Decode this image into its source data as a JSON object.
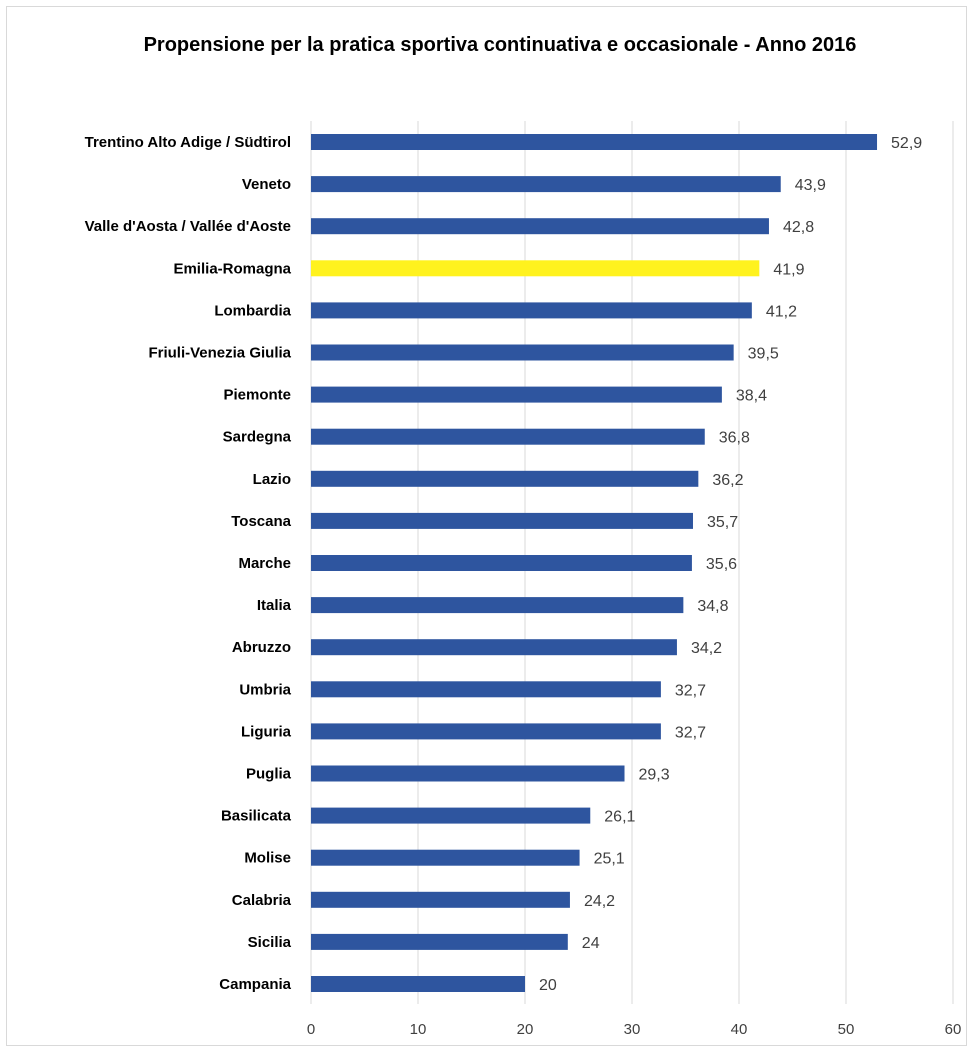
{
  "chart_data": {
    "type": "bar",
    "orientation": "horizontal",
    "title": "Propensione per la pratica sportiva continuativa e occasionale - Anno 2016",
    "categories": [
      "Trentino Alto Adige / Südtirol",
      "Veneto",
      "Valle d'Aosta / Vallée d'Aoste",
      "Emilia-Romagna",
      "Lombardia",
      "Friuli-Venezia Giulia",
      "Piemonte",
      "Sardegna",
      "Lazio",
      "Toscana",
      "Marche",
      "Italia",
      "Abruzzo",
      "Umbria",
      "Liguria",
      "Puglia",
      "Basilicata",
      "Molise",
      "Calabria",
      "Sicilia",
      "Campania"
    ],
    "values": [
      52.9,
      43.9,
      42.8,
      41.9,
      41.2,
      39.5,
      38.4,
      36.8,
      36.2,
      35.7,
      35.6,
      34.8,
      34.2,
      32.7,
      32.7,
      29.3,
      26.1,
      25.1,
      24.2,
      24,
      20
    ],
    "value_labels": [
      "52,9",
      "43,9",
      "42,8",
      "41,9",
      "41,2",
      "39,5",
      "38,4",
      "36,8",
      "36,2",
      "35,7",
      "35,6",
      "34,8",
      "34,2",
      "32,7",
      "32,7",
      "29,3",
      "26,1",
      "25,1",
      "24,2",
      "24",
      "20"
    ],
    "xlim": [
      0,
      60
    ],
    "x_ticks": [
      "0",
      "10",
      "20",
      "30",
      "40",
      "50",
      "60"
    ],
    "grid": "vertical",
    "legend": "none",
    "bar_color": "#2e559f",
    "highlight_category": "Emilia-Romagna",
    "highlight_color": "#fff21e"
  }
}
